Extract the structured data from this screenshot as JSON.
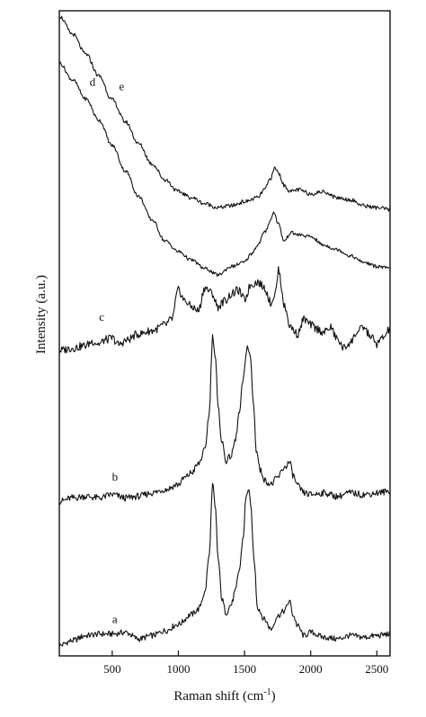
{
  "chart_data": {
    "type": "line",
    "title": "",
    "xlabel": "Raman shift (cm",
    "xlabel_sup": "-1",
    "xlabel_close": ")",
    "ylabel": "Intensity (a.u.)",
    "xlim": [
      100,
      2600
    ],
    "x_ticks": [
      500,
      1000,
      1500,
      2000,
      2500
    ],
    "y_tick_labels": false,
    "grid": false,
    "legend": "none",
    "series": [
      {
        "name": "a",
        "label_x": 520,
        "x": [
          100,
          200,
          300,
          400,
          500,
          600,
          700,
          800,
          900,
          1000,
          1100,
          1150,
          1200,
          1230,
          1260,
          1280,
          1300,
          1330,
          1360,
          1400,
          1430,
          1460,
          1490,
          1510,
          1530,
          1550,
          1570,
          1600,
          1650,
          1700,
          1750,
          1800,
          1840,
          1870,
          1900,
          1950,
          2000,
          2100,
          2200,
          2300,
          2400,
          2500,
          2600
        ],
        "values": [
          0.02,
          0.05,
          0.08,
          0.09,
          0.09,
          0.1,
          0.06,
          0.08,
          0.11,
          0.15,
          0.21,
          0.24,
          0.34,
          0.55,
          1.0,
          0.85,
          0.55,
          0.3,
          0.22,
          0.27,
          0.35,
          0.48,
          0.68,
          0.92,
          0.98,
          0.85,
          0.55,
          0.25,
          0.18,
          0.12,
          0.2,
          0.23,
          0.29,
          0.2,
          0.14,
          0.08,
          0.1,
          0.07,
          0.06,
          0.08,
          0.07,
          0.08,
          0.09
        ]
      },
      {
        "name": "b",
        "label_x": 520,
        "x": [
          100,
          200,
          300,
          400,
          500,
          600,
          700,
          800,
          900,
          1000,
          1050,
          1100,
          1150,
          1200,
          1230,
          1260,
          1280,
          1300,
          1330,
          1360,
          1400,
          1430,
          1460,
          1490,
          1520,
          1545,
          1565,
          1590,
          1620,
          1660,
          1700,
          1750,
          1800,
          1840,
          1870,
          1900,
          1950,
          2000,
          2100,
          2200,
          2300,
          2400,
          2500,
          2600
        ],
        "values": [
          0.0,
          0.02,
          0.03,
          0.02,
          0.04,
          0.02,
          0.03,
          0.05,
          0.07,
          0.1,
          0.14,
          0.17,
          0.22,
          0.3,
          0.5,
          0.98,
          0.85,
          0.55,
          0.35,
          0.24,
          0.27,
          0.36,
          0.52,
          0.72,
          0.92,
          0.85,
          0.6,
          0.3,
          0.18,
          0.12,
          0.1,
          0.14,
          0.2,
          0.23,
          0.15,
          0.09,
          0.05,
          0.04,
          0.05,
          0.03,
          0.05,
          0.04,
          0.05,
          0.06
        ]
      },
      {
        "name": "c",
        "label_x": 420,
        "x": [
          100,
          200,
          300,
          350,
          400,
          450,
          500,
          550,
          600,
          700,
          800,
          900,
          950,
          1000,
          1050,
          1100,
          1150,
          1200,
          1250,
          1300,
          1350,
          1400,
          1450,
          1500,
          1550,
          1600,
          1650,
          1700,
          1730,
          1760,
          1780,
          1800,
          1850,
          1900,
          1950,
          2000,
          2050,
          2100,
          2150,
          2200,
          2250,
          2300,
          2350,
          2400,
          2450,
          2500,
          2550,
          2600
        ],
        "values": [
          0.02,
          0.05,
          0.08,
          0.13,
          0.1,
          0.15,
          0.17,
          0.09,
          0.14,
          0.22,
          0.26,
          0.33,
          0.4,
          0.75,
          0.62,
          0.55,
          0.5,
          0.78,
          0.72,
          0.55,
          0.62,
          0.7,
          0.75,
          0.64,
          0.82,
          0.85,
          0.78,
          0.6,
          0.7,
          1.0,
          0.78,
          0.55,
          0.3,
          0.22,
          0.4,
          0.33,
          0.28,
          0.24,
          0.3,
          0.16,
          0.05,
          0.12,
          0.24,
          0.3,
          0.2,
          0.1,
          0.18,
          0.28
        ]
      },
      {
        "name": "d",
        "label_x": 270,
        "x": [
          100,
          200,
          300,
          400,
          500,
          600,
          700,
          800,
          900,
          1000,
          1100,
          1200,
          1300,
          1400,
          1500,
          1550,
          1600,
          1650,
          1700,
          1720,
          1750,
          1800,
          1850,
          1900,
          2000,
          2100,
          2200,
          2300,
          2400,
          2500,
          2600
        ],
        "values": [
          1.0,
          0.92,
          0.83,
          0.73,
          0.61,
          0.49,
          0.37,
          0.26,
          0.16,
          0.11,
          0.07,
          0.03,
          0.0,
          0.04,
          0.06,
          0.1,
          0.14,
          0.2,
          0.26,
          0.3,
          0.25,
          0.16,
          0.2,
          0.19,
          0.18,
          0.14,
          0.12,
          0.09,
          0.06,
          0.04,
          0.03
        ]
      },
      {
        "name": "e",
        "label_x": 490,
        "x": [
          100,
          200,
          300,
          400,
          500,
          600,
          700,
          800,
          900,
          1000,
          1100,
          1200,
          1300,
          1400,
          1500,
          1600,
          1650,
          1700,
          1730,
          1760,
          1800,
          1850,
          1900,
          2000,
          2100,
          2200,
          2300,
          2400,
          2500,
          2600
        ],
        "values": [
          1.0,
          0.91,
          0.81,
          0.7,
          0.58,
          0.47,
          0.36,
          0.26,
          0.18,
          0.12,
          0.09,
          0.06,
          0.04,
          0.05,
          0.07,
          0.09,
          0.13,
          0.19,
          0.24,
          0.21,
          0.15,
          0.12,
          0.13,
          0.11,
          0.12,
          0.09,
          0.08,
          0.05,
          0.04,
          0.03
        ]
      }
    ]
  }
}
